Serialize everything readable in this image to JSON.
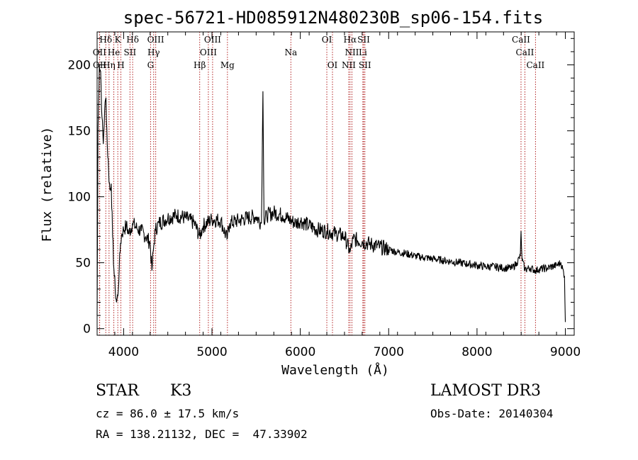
{
  "title": "spec-56721-HD085912N480230B_sp06-154.fits",
  "info": {
    "object_class": "STAR",
    "subclass": "K3",
    "cz": "cz = 86.0 ± 17.5 km/s",
    "radec": "RA = 138.21132, DEC =  47.33902",
    "survey": "LAMOST DR3",
    "obs_date": "Obs-Date: 20140304"
  },
  "chart_data": {
    "type": "line",
    "title": "spec-56721-HD085912N480230B_sp06-154.fits",
    "xlabel": "Wavelength (Å)",
    "ylabel": "Flux (relative)",
    "xlim": [
      3700,
      9100
    ],
    "ylim": [
      -5,
      225
    ],
    "xticks": [
      4000,
      5000,
      6000,
      7000,
      8000,
      9000
    ],
    "yticks": [
      0,
      50,
      100,
      150,
      200
    ],
    "grid": false,
    "line_color": "#000000",
    "marker_color": "#b22222",
    "series": [
      {
        "x": [
          3700,
          3710,
          3725,
          3740,
          3755,
          3770,
          3785,
          3800,
          3815,
          3830,
          3845,
          3860,
          3875,
          3890,
          3905,
          3920,
          3935,
          3950,
          3965,
          3980,
          4000,
          4030,
          4060,
          4100,
          4150,
          4200,
          4250,
          4300,
          4320,
          4340,
          4360,
          4400,
          4500,
          4600,
          4700,
          4800,
          4860,
          4900,
          5000,
          5100,
          5170,
          5200,
          5300,
          5400,
          5500,
          5560,
          5577,
          5590,
          5620,
          5700,
          5800,
          5890,
          5950,
          6000,
          6100,
          6200,
          6300,
          6400,
          6500,
          6563,
          6600,
          6700,
          6800,
          6900,
          7000,
          7100,
          7200,
          7300,
          7400,
          7500,
          7600,
          7700,
          7800,
          7900,
          8000,
          8100,
          8200,
          8300,
          8400,
          8450,
          8490,
          8498,
          8510,
          8542,
          8600,
          8662,
          8700,
          8800,
          8900,
          8950,
          8990,
          9000
        ],
        "y": [
          10,
          150,
          200,
          195,
          160,
          140,
          165,
          175,
          140,
          120,
          105,
          110,
          70,
          45,
          30,
          20,
          25,
          45,
          65,
          72,
          75,
          78,
          72,
          80,
          76,
          74,
          70,
          65,
          44,
          62,
          75,
          80,
          84,
          86,
          84,
          80,
          70,
          78,
          83,
          82,
          68,
          80,
          82,
          84,
          85,
          80,
          180,
          80,
          86,
          88,
          86,
          82,
          80,
          82,
          78,
          75,
          74,
          72,
          70,
          58,
          68,
          66,
          64,
          62,
          60,
          58,
          57,
          55,
          54,
          53,
          52,
          51,
          50,
          49,
          48,
          47,
          47,
          46,
          46,
          50,
          55,
          74,
          52,
          45,
          46,
          44,
          45,
          46,
          48,
          50,
          40,
          5
        ]
      }
    ],
    "annotations": [
      {
        "label": "Hδ",
        "x": 3798,
        "row": 0
      },
      {
        "label": "K",
        "x": 3934,
        "row": 0
      },
      {
        "label": "Hδ",
        "x": 4102,
        "row": 0
      },
      {
        "label": "OIII",
        "x": 4363,
        "row": 0
      },
      {
        "label": "OIII",
        "x": 5007,
        "row": 0
      },
      {
        "label": "OI",
        "x": 6300,
        "row": 0
      },
      {
        "label": "Hα",
        "x": 6563,
        "row": 0
      },
      {
        "label": "SII",
        "x": 6717,
        "row": 0
      },
      {
        "label": "CaII",
        "x": 8498,
        "row": 0
      },
      {
        "label": "OII",
        "x": 3727,
        "row": 1
      },
      {
        "label": "He",
        "x": 3889,
        "row": 1
      },
      {
        "label": "SII",
        "x": 4072,
        "row": 1
      },
      {
        "label": "Hγ",
        "x": 4340,
        "row": 1
      },
      {
        "label": "OIII",
        "x": 4959,
        "row": 1
      },
      {
        "label": "Na",
        "x": 5893,
        "row": 1
      },
      {
        "label": "NII",
        "x": 6584,
        "row": 1
      },
      {
        "label": "Li",
        "x": 6708,
        "row": 1
      },
      {
        "label": "CaII",
        "x": 8542,
        "row": 1
      },
      {
        "label": "OII",
        "x": 3729,
        "row": 2
      },
      {
        "label": "Hη",
        "x": 3835,
        "row": 2
      },
      {
        "label": "H",
        "x": 3969,
        "row": 2
      },
      {
        "label": "G",
        "x": 4305,
        "row": 2
      },
      {
        "label": "Hβ",
        "x": 4861,
        "row": 2
      },
      {
        "label": "Mg",
        "x": 5175,
        "row": 2
      },
      {
        "label": "OI",
        "x": 6364,
        "row": 2
      },
      {
        "label": "NII",
        "x": 6548,
        "row": 2
      },
      {
        "label": "SII",
        "x": 6731,
        "row": 2
      },
      {
        "label": "CaII",
        "x": 8662,
        "row": 2
      }
    ]
  }
}
